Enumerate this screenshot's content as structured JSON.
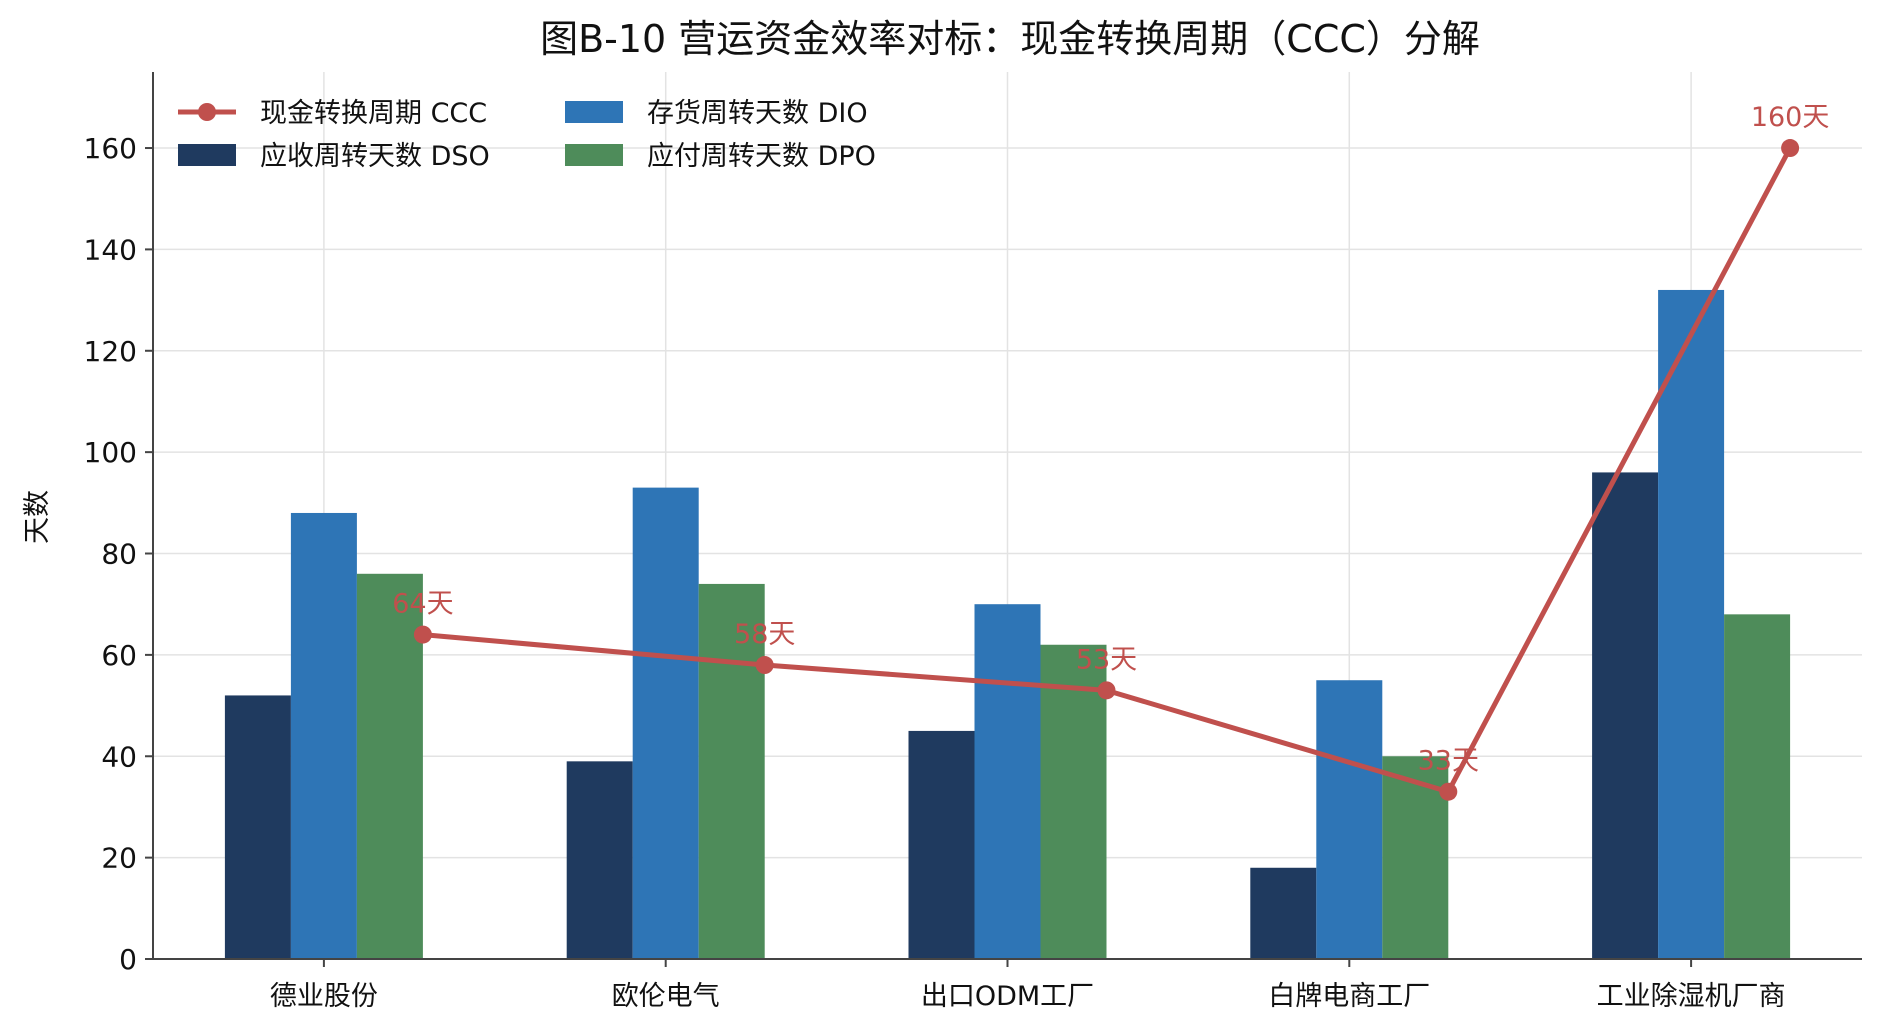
{
  "chart_data": {
    "type": "bar",
    "title": "图B-10  营运资金效率对标：现金转换周期（CCC）分解",
    "xlabel": "",
    "ylabel": "天数",
    "ylim": [
      0,
      175
    ],
    "yticks": [
      0,
      20,
      40,
      60,
      80,
      100,
      120,
      140,
      160
    ],
    "grid": true,
    "legend_position": "top-left",
    "categories": [
      "德业股份",
      "欧伦电气",
      "出口ODM工厂",
      "白牌电商工厂",
      "工业除湿机厂商"
    ],
    "series": [
      {
        "name": "应收周转天数 DSO",
        "kind": "bar",
        "color": "#1f3a5f",
        "values": [
          52,
          39,
          45,
          18,
          96
        ]
      },
      {
        "name": "存货周转天数 DIO",
        "kind": "bar",
        "color": "#2e75b6",
        "values": [
          88,
          93,
          70,
          55,
          132
        ]
      },
      {
        "name": "应付周转天数 DPO",
        "kind": "bar",
        "color": "#4e8c5a",
        "values": [
          76,
          74,
          62,
          40,
          68
        ]
      },
      {
        "name": "现金转换周期 CCC",
        "kind": "line",
        "color": "#c0504d",
        "values": [
          64,
          58,
          53,
          33,
          160
        ]
      }
    ],
    "annotations": [
      "64天",
      "58天",
      "53天",
      "33天",
      "160天"
    ]
  }
}
